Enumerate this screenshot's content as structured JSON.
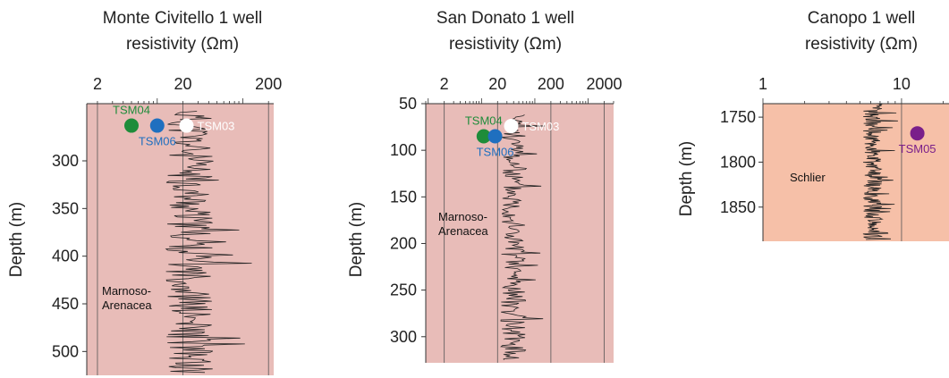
{
  "chart_data": [
    {
      "type": "line",
      "title_line1": "Monte Civitello 1 well",
      "title_line2": "resistivity (Ωm)",
      "ylabel": "Depth (m)",
      "xscale": "log",
      "xlim": [
        1.5,
        230
      ],
      "ylim": [
        525,
        240
      ],
      "xticks": [
        2,
        20,
        200
      ],
      "yticks": [
        300,
        350,
        400,
        450,
        500
      ],
      "background": "#e8bcb8",
      "annotation": [
        "Marnoso-",
        "Arenacea"
      ],
      "markers": [
        {
          "name": "TSM04",
          "x": 5,
          "y": 263,
          "color": "#1e8c3a",
          "label_color": "#1e8c3a",
          "label_pos": "above"
        },
        {
          "name": "TSM06",
          "x": 10,
          "y": 263,
          "color": "#1f6fbf",
          "label_color": "#1f6fbf",
          "label_pos": "below"
        },
        {
          "name": "TSM03",
          "x": 22,
          "y": 263,
          "color": "#ffffff",
          "label_color": "#ffffff",
          "label_pos": "right"
        }
      ],
      "log": {
        "depth_start": 248,
        "depth_end": 522,
        "center": 24,
        "spread": 0.28
      }
    },
    {
      "type": "line",
      "title_line1": "San Donato 1 well",
      "title_line2": "resistivity (Ωm)",
      "ylabel": "Depth (m)",
      "xscale": "log",
      "xlim": [
        0.9,
        3000
      ],
      "ylim": [
        328,
        50
      ],
      "xticks": [
        2,
        20,
        200,
        2000
      ],
      "yticks": [
        50,
        100,
        150,
        200,
        250,
        300
      ],
      "background": "#e8bcb8",
      "annotation": [
        "Marnoso-",
        "Arenacea"
      ],
      "markers": [
        {
          "name": "TSM04",
          "x": 11,
          "y": 85,
          "color": "#1e8c3a",
          "label_color": "#1e8c3a",
          "label_pos": "above"
        },
        {
          "name": "TSM06",
          "x": 18,
          "y": 85,
          "color": "#1f6fbf",
          "label_color": "#1f6fbf",
          "label_pos": "below"
        },
        {
          "name": "TSM03",
          "x": 36,
          "y": 74,
          "color": "#ffffff",
          "label_color": "#ffffff",
          "label_pos": "right"
        }
      ],
      "log": {
        "depth_start": 62,
        "depth_end": 325,
        "center": 40,
        "spread": 0.24
      }
    },
    {
      "type": "line",
      "title_line1": "Canopo 1 well",
      "title_line2": "resistivity (Ωm)",
      "ylabel": "Depth (m)",
      "xscale": "log",
      "xlim": [
        1,
        22
      ],
      "ylim": [
        1888,
        1735
      ],
      "xticks": [
        1,
        10
      ],
      "yticks": [
        1750,
        1800,
        1850
      ],
      "background": "#f6c0a8",
      "annotation": [
        "Schlier"
      ],
      "markers": [
        {
          "name": "TSM05",
          "x": 13,
          "y": 1768,
          "color": "#7a1f8a",
          "label_color": "#7a1f8a",
          "label_pos": "below"
        }
      ],
      "log": {
        "depth_start": 1735,
        "depth_end": 1886,
        "center": 6.2,
        "spread": 0.07
      }
    }
  ]
}
